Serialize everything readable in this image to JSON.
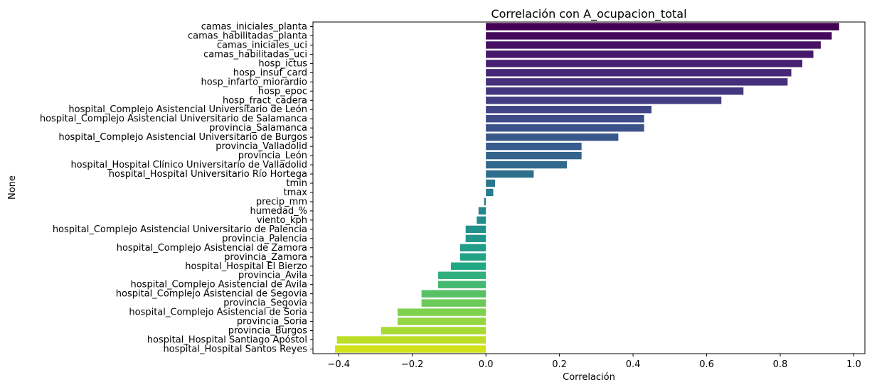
{
  "chart_data": {
    "type": "bar",
    "orientation": "horizontal",
    "title": "Correlación con A_ocupacion_total",
    "xlabel": "Correlación",
    "ylabel": "None",
    "xlim": [
      -0.47,
      1.03
    ],
    "xticks": [
      -0.4,
      -0.2,
      0.0,
      0.2,
      0.4,
      0.6,
      0.8,
      1.0
    ],
    "xtick_labels": [
      "−0.4",
      "−0.2",
      "0.0",
      "0.2",
      "0.4",
      "0.6",
      "0.8",
      "1.0"
    ],
    "grid": false,
    "colormap": "viridis",
    "categories": [
      "camas_iniciales_planta",
      "camas_habilitadas_planta",
      "camas_iniciales_uci",
      "camas_habilitadas_uci",
      "hosp_ictus",
      "hosp_insuf_card",
      "hosp_infarto_miorardio",
      "hosp_epoc",
      "hosp_fract_cadera",
      "hospital_Complejo Asistencial Universitario de León",
      "hospital_Complejo Asistencial Universitario de Salamanca",
      "provincia_Salamanca",
      "hospital_Complejo Asistencial Universitario de Burgos",
      "provincia_Valladolid",
      "provincia_León",
      "hospital_Hospital Clínico Universitario de Valladolid",
      "hospital_Hospital Universitario Río Hortega",
      "tmin",
      "tmax",
      "precip_mm",
      "humedad_%",
      "viento_kph",
      "hospital_Complejo Asistencial Universitario de Palencia",
      "provincia_Palencia",
      "hospital_Complejo Asistencial de Zamora",
      "provincia_Zamora",
      "hospital_Hospital El Bierzo",
      "provincia_Avila",
      "hospital_Complejo Asistencial de Avila",
      "hospital_Complejo Asistencial de Segovia",
      "provincia_Segovia",
      "hospital_Complejo Asistencial de Soria",
      "provincia_Soria",
      "provincia_Burgos",
      "hospital_Hospital Santiago Apóstol",
      "hospital_Hospital Santos Reyes"
    ],
    "values": [
      0.96,
      0.94,
      0.91,
      0.89,
      0.86,
      0.83,
      0.82,
      0.7,
      0.64,
      0.45,
      0.43,
      0.43,
      0.36,
      0.26,
      0.26,
      0.22,
      0.13,
      0.025,
      0.02,
      -0.005,
      -0.02,
      -0.025,
      -0.055,
      -0.055,
      -0.07,
      -0.07,
      -0.095,
      -0.13,
      -0.13,
      -0.175,
      -0.175,
      -0.24,
      -0.24,
      -0.285,
      -0.405,
      -0.41
    ]
  }
}
